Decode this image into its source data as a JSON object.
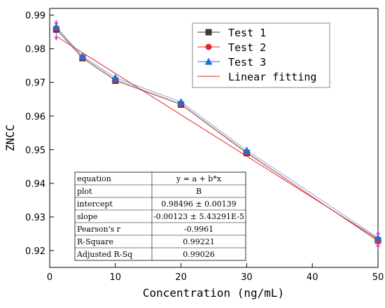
{
  "chart_data": {
    "type": "line",
    "xlabel": "Concentration (ng/mL)",
    "ylabel": "ZNCC",
    "xlim": [
      0,
      50
    ],
    "ylim": [
      0.915,
      0.992
    ],
    "xticks": [
      0,
      10,
      20,
      30,
      40,
      50
    ],
    "yticks": [
      0.92,
      0.93,
      0.94,
      0.95,
      0.96,
      0.97,
      0.98,
      0.99
    ],
    "xtick_labels": [
      "0",
      "10",
      "20",
      "30",
      "40",
      "50"
    ],
    "ytick_labels": [
      "0.92",
      "0.93",
      "0.94",
      "0.95",
      "0.96",
      "0.97",
      "0.98",
      "0.99"
    ],
    "x": [
      1,
      5,
      10,
      20,
      30,
      50
    ],
    "series": [
      {
        "name": "Test 1",
        "marker": "square",
        "color": "#3a3a3a",
        "values": [
          0.9857,
          0.9772,
          0.9705,
          0.9634,
          0.949,
          0.923
        ]
      },
      {
        "name": "Test 2",
        "marker": "circle",
        "color": "#e8262a",
        "values": [
          0.9861,
          0.9774,
          0.9708,
          0.9636,
          0.9492,
          0.9228
        ]
      },
      {
        "name": "Test 3",
        "marker": "triangle",
        "color": "#1f6fd6",
        "values": [
          0.9865,
          0.9778,
          0.9714,
          0.9642,
          0.9498,
          0.9238
        ]
      }
    ],
    "fit": {
      "name": "Linear fitting",
      "color": "#e8262a",
      "intercept": 0.98496,
      "slope": -0.00123
    },
    "error_bars": {
      "color": "#e040e0",
      "x": [
        1,
        50
      ],
      "low": [
        0.9832,
        0.9213
      ],
      "high": [
        0.9878,
        0.9252
      ]
    },
    "legend_position": "top-right",
    "grid": false,
    "stats_table": [
      {
        "label": "equation",
        "value": "y = a + b*x"
      },
      {
        "label": "plot",
        "value": "B"
      },
      {
        "label": "intercept",
        "value": "0.98496 ± 0.00139"
      },
      {
        "label": "slope",
        "value": "-0.00123 ± 5.43291E-5"
      },
      {
        "label": "Pearson's r",
        "value": "-0.9961"
      },
      {
        "label": "R-Square",
        "value": "0.99221"
      },
      {
        "label": "Adjusted R-Sq",
        "value": "0.99026"
      }
    ]
  }
}
